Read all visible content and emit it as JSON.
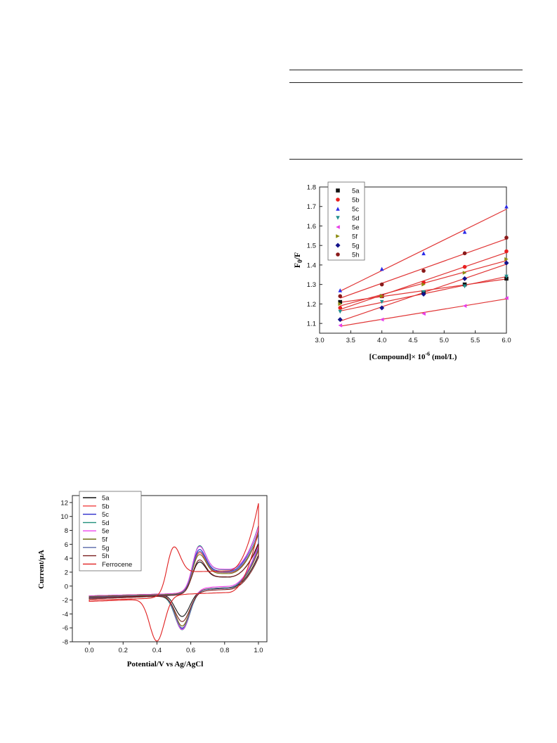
{
  "chart_data": [
    {
      "type": "scatter",
      "title": "",
      "xlabel": "[Compound]× 10",
      "xlabel_exp": "-6",
      "xlabel_unit": " (mol/L)",
      "ylabel_main": "F",
      "ylabel_sub": "0",
      "ylabel_tail": "/F",
      "xlim": [
        3.0,
        6.0
      ],
      "ylim": [
        1.05,
        1.8
      ],
      "xticks": [
        "3.0",
        "3.5",
        "4.0",
        "4.5",
        "5.0",
        "5.5",
        "6.0"
      ],
      "yticks": [
        "1.1",
        "1.2",
        "1.3",
        "1.4",
        "1.5",
        "1.6",
        "1.7",
        "1.8"
      ],
      "xtick_values": [
        3.0,
        3.5,
        4.0,
        4.5,
        5.0,
        5.5,
        6.0
      ],
      "ytick_values": [
        1.1,
        1.2,
        1.3,
        1.4,
        1.5,
        1.6,
        1.7,
        1.8
      ],
      "legend_position": "top-left",
      "fit_line_color": "#e03535",
      "x": [
        3.33,
        4.0,
        4.67,
        5.33,
        6.0
      ],
      "series": [
        {
          "name": "5a",
          "marker": "square",
          "color": "#111111",
          "values": [
            1.21,
            1.24,
            1.26,
            1.3,
            1.33
          ]
        },
        {
          "name": "5b",
          "marker": "circle",
          "color": "#e82020",
          "values": [
            1.18,
            1.24,
            1.31,
            1.39,
            1.47
          ]
        },
        {
          "name": "5c",
          "marker": "triangle-up",
          "color": "#2a2ae8",
          "values": [
            1.27,
            1.38,
            1.46,
            1.57,
            1.7
          ]
        },
        {
          "name": "5d",
          "marker": "triangle-down",
          "color": "#1f8f8f",
          "values": [
            1.16,
            1.21,
            1.26,
            1.29,
            1.34
          ]
        },
        {
          "name": "5e",
          "marker": "triangle-left",
          "color": "#e83ee8",
          "values": [
            1.09,
            1.12,
            1.15,
            1.19,
            1.23
          ]
        },
        {
          "name": "5f",
          "marker": "triangle-right",
          "color": "#8c8c10",
          "values": [
            1.2,
            1.24,
            1.3,
            1.36,
            1.43
          ]
        },
        {
          "name": "5g",
          "marker": "diamond",
          "color": "#12128a",
          "values": [
            1.12,
            1.18,
            1.25,
            1.33,
            1.41
          ]
        },
        {
          "name": "5h",
          "marker": "circle",
          "color": "#8a1a1a",
          "values": [
            1.24,
            1.3,
            1.37,
            1.46,
            1.54
          ]
        }
      ]
    },
    {
      "type": "line",
      "title": "",
      "xlabel": "Potential/V vs Ag/AgCl",
      "ylabel": "Current/μA",
      "xlim": [
        -0.1,
        1.05
      ],
      "ylim": [
        -8,
        13
      ],
      "xticks": [
        "0.0",
        "0.2",
        "0.4",
        "0.6",
        "0.8",
        "1.0"
      ],
      "yticks": [
        "-8",
        "-6",
        "-4",
        "-2",
        "0",
        "2",
        "4",
        "6",
        "8",
        "10",
        "12"
      ],
      "xtick_values": [
        0.0,
        0.2,
        0.4,
        0.6,
        0.8,
        1.0
      ],
      "ytick_values": [
        -8,
        -6,
        -4,
        -2,
        0,
        2,
        4,
        6,
        8,
        10,
        12
      ],
      "legend_position": "top-left",
      "series": [
        {
          "name": "5a",
          "color": "#111111",
          "ipa": 5.0,
          "ipc": -3.3,
          "end": 7.0
        },
        {
          "name": "5b",
          "color": "#f04040",
          "ipa": 6.6,
          "ipc": -4.6,
          "end": 7.6
        },
        {
          "name": "5c",
          "color": "#2a2acc",
          "ipa": 7.2,
          "ipc": -4.9,
          "end": 8.6
        },
        {
          "name": "5d",
          "color": "#1f8f7a",
          "ipa": 7.9,
          "ipc": -5.0,
          "end": 8.4
        },
        {
          "name": "5e",
          "color": "#ee44ee",
          "ipa": 7.5,
          "ipc": -5.2,
          "end": 8.2
        },
        {
          "name": "5f",
          "color": "#6e6e10",
          "ipa": 6.3,
          "ipc": -4.6,
          "end": 7.8
        },
        {
          "name": "5g",
          "color": "#5a6aa8",
          "ipa": 6.9,
          "ipc": -4.8,
          "end": 8.1
        },
        {
          "name": "5h",
          "color": "#7a1e1e",
          "ipa": 5.6,
          "ipc": -3.8,
          "end": 6.8
        },
        {
          "name": "Ferrocene",
          "color": "#e02020",
          "ipa": 8.2,
          "ipc": -6.1,
          "end": 11.6
        }
      ]
    }
  ]
}
